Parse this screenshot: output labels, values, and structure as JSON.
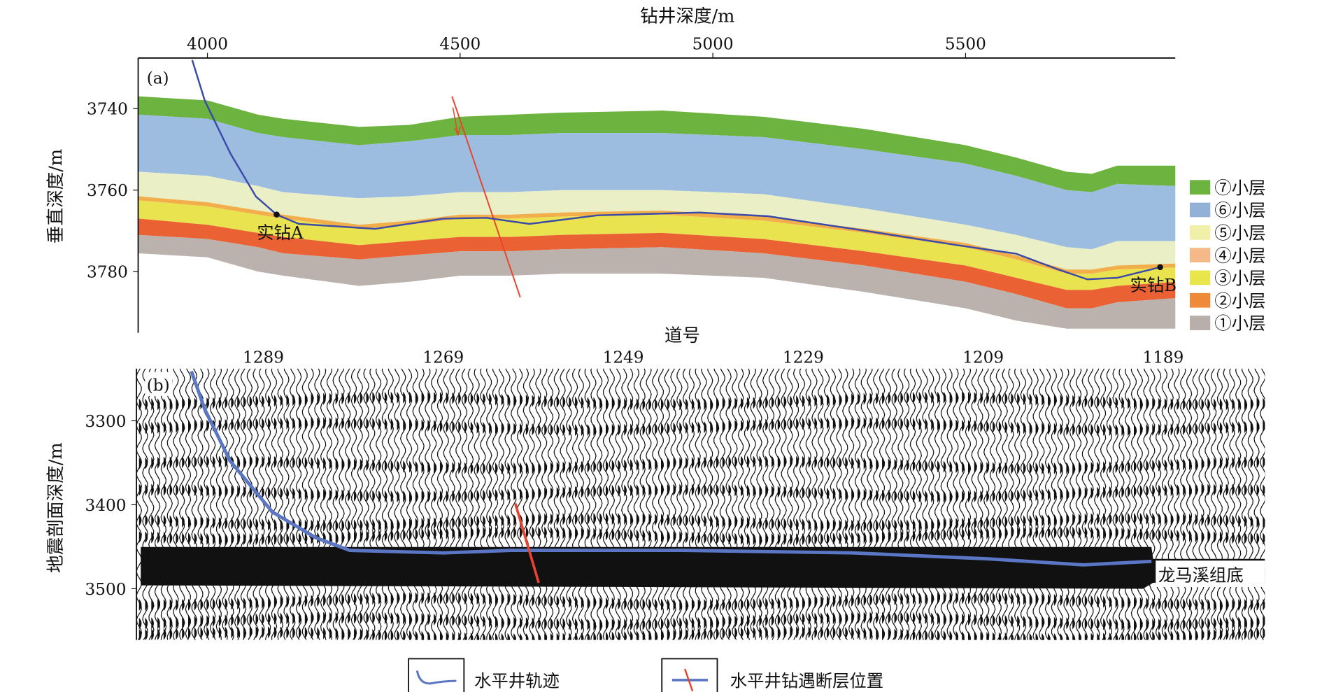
{
  "chart_data": [
    {
      "type": "area",
      "panel_label": "(a)",
      "title": "",
      "xlabel": "钻井深度/m",
      "ylabel": "垂直深度/m",
      "xlim": [
        3863,
        5915
      ],
      "ylim": [
        3727.6,
        3795
      ],
      "x_ticks": [
        4000,
        4500,
        5000,
        5500
      ],
      "y_ticks": [
        3740,
        3760,
        3780
      ],
      "x": [
        3863,
        4000,
        4100,
        4150,
        4300,
        4400,
        4500,
        4600,
        4700,
        4900,
        5100,
        5300,
        5500,
        5600,
        5700,
        5750,
        5800,
        5915
      ],
      "boundaries": [
        [
          3737,
          3738,
          3741.5,
          3742.5,
          3744.5,
          3744,
          3742,
          3741.5,
          3741,
          3740.5,
          3742,
          3745,
          3749,
          3752,
          3755.5,
          3756,
          3754,
          3754
        ],
        [
          3741.5,
          3742.5,
          3746,
          3747,
          3749,
          3748,
          3746.5,
          3746.5,
          3746,
          3746,
          3747,
          3750,
          3753.5,
          3756.5,
          3760,
          3760.5,
          3758.5,
          3759
        ],
        [
          3755.5,
          3756.5,
          3759,
          3760.5,
          3762,
          3761.5,
          3760.5,
          3760.5,
          3760,
          3760,
          3761,
          3764.5,
          3768.5,
          3771,
          3774,
          3774.5,
          3772.5,
          3772.5
        ],
        [
          3761.5,
          3763,
          3765,
          3766,
          3768.5,
          3767.5,
          3766,
          3766,
          3765.5,
          3765,
          3766.5,
          3769.5,
          3773,
          3776,
          3779.5,
          3779.5,
          3778.5,
          3778
        ],
        [
          3762.5,
          3764,
          3766,
          3767,
          3769.5,
          3768.5,
          3767,
          3767,
          3766.5,
          3766,
          3767.5,
          3770.5,
          3774,
          3777,
          3780.5,
          3780.5,
          3779.5,
          3779
        ],
        [
          3767,
          3768.5,
          3770.5,
          3771.5,
          3773.5,
          3772.5,
          3771.5,
          3771.5,
          3771,
          3770.5,
          3772,
          3775,
          3778.5,
          3781.5,
          3784.5,
          3784.5,
          3783.5,
          3782.5
        ],
        [
          3771,
          3772,
          3774,
          3775.5,
          3777,
          3776,
          3775,
          3775,
          3774.5,
          3774,
          3775.5,
          3778.5,
          3782.5,
          3785.5,
          3789,
          3789,
          3787.5,
          3786.5
        ],
        [
          3775.5,
          3776.5,
          3780,
          3781,
          3783.5,
          3782.5,
          3781,
          3781,
          3780.5,
          3780.5,
          3781.5,
          3785,
          3789,
          3792,
          3794,
          3794,
          3794,
          3794
        ]
      ],
      "layers": [
        {
          "name": "⑦小层",
          "color": "#6db33f"
        },
        {
          "name": "⑥小层",
          "color": "#9dbde0"
        },
        {
          "name": "⑤小层",
          "color": "#ebefc5"
        },
        {
          "name": "④小层",
          "color": "#f1ae4a"
        },
        {
          "name": "③小层",
          "color": "#e9e34f"
        },
        {
          "name": "②小层",
          "color": "#ea6234"
        },
        {
          "name": "①小层",
          "color": "#bbb2ae"
        }
      ],
      "legend_colors": [
        "#6db33f",
        "#93b1d6",
        "#f0f0a8",
        "#f4b987",
        "#e9e64c",
        "#ef8a3a",
        "#b8afab"
      ],
      "trajectory": {
        "x": [
          3970,
          3995,
          4046,
          4096,
          4137,
          4181,
          4332,
          4467,
          4552,
          4637,
          4771,
          4974,
          5109,
          5277,
          5483,
          5600,
          5682,
          5741,
          5801,
          5885
        ],
        "y": [
          3728.1,
          3738.1,
          3751.1,
          3761.6,
          3766.0,
          3768.3,
          3769.5,
          3767.0,
          3766.8,
          3768.3,
          3766.2,
          3765.5,
          3766.4,
          3769.5,
          3773.5,
          3775.6,
          3779.4,
          3781.9,
          3781.5,
          3778.9
        ],
        "color": "#3a4aa8"
      },
      "fault": {
        "x": [
          4484,
          4619
        ],
        "y": [
          3737,
          3786.3
        ],
        "color": "#e8432e"
      },
      "points": [
        {
          "label": "实钻A",
          "x": 4137,
          "y": 3766.0
        },
        {
          "label": "实钻B",
          "x": 5885,
          "y": 3778.9
        }
      ]
    },
    {
      "type": "heatmap",
      "panel_label": "(b)",
      "title": "",
      "xlabel": "道号",
      "ylabel": "地震剖面深度/m",
      "xlim": [
        1303.1,
        1177.7
      ],
      "ylim": [
        3238,
        3561
      ],
      "x_ticks": [
        1289,
        1269,
        1249,
        1229,
        1209,
        1189
      ],
      "y_ticks": [
        3300,
        3400,
        3500
      ],
      "trajectory": {
        "x": [
          1297.0,
          1295.5,
          1292.7,
          1288.0,
          1283.2,
          1279.4,
          1269.0,
          1261.4,
          1242.5,
          1223.5,
          1208.3,
          1197.9,
          1190.3
        ],
        "y": [
          3241.1,
          3286.8,
          3347.7,
          3408.6,
          3439.1,
          3454.3,
          3457.4,
          3454.3,
          3454.3,
          3457.4,
          3464.5,
          3471.6,
          3467.5
        ],
        "color": "#5a76c4"
      },
      "fault": {
        "x": [
          1261.0,
          1258.4
        ],
        "y": [
          3398.5,
          3492.9
        ],
        "color": "#e8432e"
      },
      "annotation": "龙马溪组底"
    }
  ],
  "legend": {
    "trajectory_label": "水平井轨迹",
    "fault_label": "水平井钻遇断层位置"
  }
}
